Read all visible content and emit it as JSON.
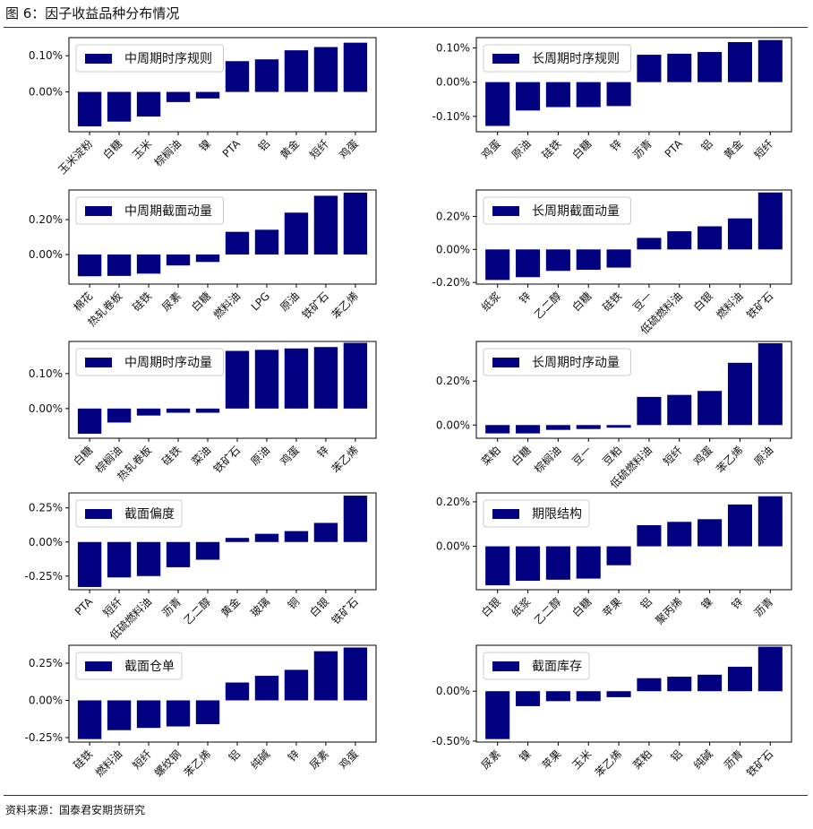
{
  "page": {
    "title": "图 6：因子收益品种分布情况",
    "source": "资料来源：国泰君安期货研究"
  },
  "style": {
    "bar_color": "#000080"
  },
  "chart_data": [
    {
      "type": "bar",
      "legend": "中周期时序规则",
      "legend_position": "top-left",
      "categories": [
        "玉米淀粉",
        "白糖",
        "玉米",
        "棕榈油",
        "镍",
        "PTA",
        "铝",
        "黄金",
        "短纤",
        "鸡蛋"
      ],
      "values": [
        -0.095,
        -0.082,
        -0.068,
        -0.028,
        -0.018,
        0.085,
        0.09,
        0.115,
        0.124,
        0.136
      ],
      "yticks": [
        0.0,
        0.1
      ],
      "tick_labels": [
        "0.00%",
        "0.10%"
      ],
      "ylim": [
        -0.11,
        0.15
      ]
    },
    {
      "type": "bar",
      "legend": "长周期时序规则",
      "legend_position": "top-left",
      "categories": [
        "鸡蛋",
        "原油",
        "硅铁",
        "白糖",
        "锌",
        "沥青",
        "PTA",
        "铝",
        "黄金",
        "短纤"
      ],
      "values": [
        -0.128,
        -0.083,
        -0.073,
        -0.073,
        -0.07,
        0.08,
        0.083,
        0.088,
        0.117,
        0.123
      ],
      "yticks": [
        -0.1,
        0.0,
        0.1
      ],
      "tick_labels": [
        "-0.10%",
        "0.00%",
        "0.10%"
      ],
      "ylim": [
        -0.145,
        0.13
      ]
    },
    {
      "type": "bar",
      "legend": "中周期截面动量",
      "legend_position": "top-left",
      "categories": [
        "棉花",
        "热轧卷板",
        "硅铁",
        "尿素",
        "白糖",
        "燃料油",
        "LPG",
        "原油",
        "铁矿石",
        "苯乙烯"
      ],
      "values": [
        -0.125,
        -0.123,
        -0.11,
        -0.063,
        -0.043,
        0.13,
        0.142,
        0.24,
        0.337,
        0.355
      ],
      "yticks": [
        0.0,
        0.2
      ],
      "tick_labels": [
        "0.00%",
        "0.20%"
      ],
      "ylim": [
        -0.17,
        0.37
      ]
    },
    {
      "type": "bar",
      "legend": "长周期截面动量",
      "legend_position": "top-left",
      "categories": [
        "纸浆",
        "锌",
        "乙二醇",
        "白糖",
        "硅铁",
        "豆一",
        "低硫燃料油",
        "白银",
        "燃料油",
        "铁矿石"
      ],
      "values": [
        -0.185,
        -0.168,
        -0.13,
        -0.123,
        -0.11,
        0.07,
        0.11,
        0.14,
        0.188,
        0.345
      ],
      "yticks": [
        -0.2,
        0.0,
        0.2
      ],
      "tick_labels": [
        "-0.20%",
        "0.00%",
        "0.20%"
      ],
      "ylim": [
        -0.21,
        0.36
      ]
    },
    {
      "type": "bar",
      "legend": "中周期时序动量",
      "legend_position": "top-left",
      "categories": [
        "白糖",
        "棕榈油",
        "热轧卷板",
        "硅铁",
        "菜油",
        "铁矿石",
        "原油",
        "鸡蛋",
        "锌",
        "苯乙烯"
      ],
      "values": [
        -0.072,
        -0.04,
        -0.02,
        -0.012,
        -0.012,
        0.165,
        0.168,
        0.172,
        0.176,
        0.188
      ],
      "yticks": [
        0.0,
        0.1
      ],
      "tick_labels": [
        "0.00%",
        "0.10%"
      ],
      "ylim": [
        -0.085,
        0.192
      ]
    },
    {
      "type": "bar",
      "legend": "长周期时序动量",
      "legend_position": "top-left",
      "categories": [
        "菜粕",
        "白糖",
        "棕榈油",
        "豆一",
        "豆粕",
        "低硫燃料油",
        "短纤",
        "鸡蛋",
        "苯乙烯",
        "原油"
      ],
      "values": [
        -0.038,
        -0.038,
        -0.022,
        -0.018,
        -0.012,
        0.128,
        0.137,
        0.155,
        0.283,
        0.372
      ],
      "yticks": [
        0.0,
        0.2
      ],
      "tick_labels": [
        "0.00%",
        "0.20%"
      ],
      "ylim": [
        -0.06,
        0.38
      ]
    },
    {
      "type": "bar",
      "legend": "截面偏度",
      "legend_position": "top-left",
      "categories": [
        "PTA",
        "短纤",
        "低硫燃料油",
        "沥青",
        "乙二醇",
        "黄金",
        "玻璃",
        "铜",
        "白银",
        "铁矿石"
      ],
      "values": [
        -0.33,
        -0.26,
        -0.25,
        -0.185,
        -0.13,
        0.03,
        0.06,
        0.08,
        0.14,
        0.34
      ],
      "yticks": [
        -0.25,
        0.0,
        0.25
      ],
      "tick_labels": [
        "-0.25%",
        "0.00%",
        "0.25%"
      ],
      "ylim": [
        -0.35,
        0.36
      ]
    },
    {
      "type": "bar",
      "legend": "期限结构",
      "legend_position": "top-left",
      "categories": [
        "白银",
        "纸浆",
        "乙二醇",
        "白糖",
        "苹果",
        "铝",
        "聚丙烯",
        "镍",
        "锌",
        "沥青"
      ],
      "values": [
        -0.175,
        -0.155,
        -0.15,
        -0.145,
        -0.085,
        0.095,
        0.11,
        0.122,
        0.188,
        0.225
      ],
      "yticks": [
        0.0,
        0.2
      ],
      "tick_labels": [
        "0.00%",
        "0.20%"
      ],
      "ylim": [
        -0.195,
        0.24
      ]
    },
    {
      "type": "bar",
      "legend": "截面仓单",
      "legend_position": "top-left",
      "categories": [
        "硅铁",
        "燃料油",
        "短纤",
        "螺纹钢",
        "苯乙烯",
        "铝",
        "纯碱",
        "锌",
        "尿素",
        "鸡蛋"
      ],
      "values": [
        -0.26,
        -0.2,
        -0.185,
        -0.175,
        -0.16,
        0.12,
        0.165,
        0.205,
        0.33,
        0.355
      ],
      "yticks": [
        -0.25,
        0.0,
        0.25
      ],
      "tick_labels": [
        "-0.25%",
        "0.00%",
        "0.25%"
      ],
      "ylim": [
        -0.28,
        0.37
      ]
    },
    {
      "type": "bar",
      "legend": "截面库存",
      "legend_position": "top-left",
      "categories": [
        "尿素",
        "镍",
        "苹果",
        "玉米",
        "苯乙烯",
        "菜粕",
        "铝",
        "纯碱",
        "沥青",
        "铁矿石"
      ],
      "values": [
        -0.48,
        -0.15,
        -0.1,
        -0.1,
        -0.06,
        0.13,
        0.145,
        0.165,
        0.245,
        0.445
      ],
      "yticks": [
        -0.5,
        0.0
      ],
      "tick_labels": [
        "-0.50%",
        "0.00%"
      ],
      "ylim": [
        -0.51,
        0.46
      ]
    }
  ]
}
